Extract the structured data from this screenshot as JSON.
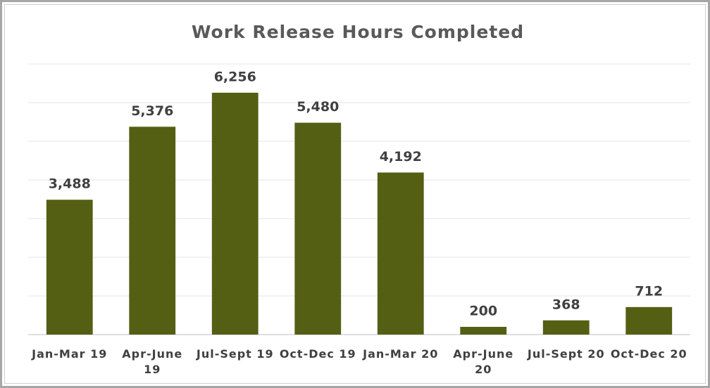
{
  "chart_data": {
    "type": "bar",
    "title": "Work Release Hours Completed",
    "categories": [
      "Jan-Mar 19",
      "Apr-June 19",
      "Jul-Sept 19",
      "Oct-Dec 19",
      "Jan-Mar 20",
      "Apr-June 20",
      "Jul-Sept 20",
      "Oct-Dec 20"
    ],
    "values": [
      3488,
      5376,
      6256,
      5480,
      4192,
      200,
      368,
      712
    ],
    "value_labels": [
      "3,488",
      "5,376",
      "6,256",
      "5,480",
      "4,192",
      "200",
      "368",
      "712"
    ],
    "color": "#545f14",
    "ylim": [
      0,
      7000
    ],
    "yticks": [
      0,
      1000,
      2000,
      3000,
      4000,
      5000,
      6000,
      7000
    ],
    "grid": true
  }
}
